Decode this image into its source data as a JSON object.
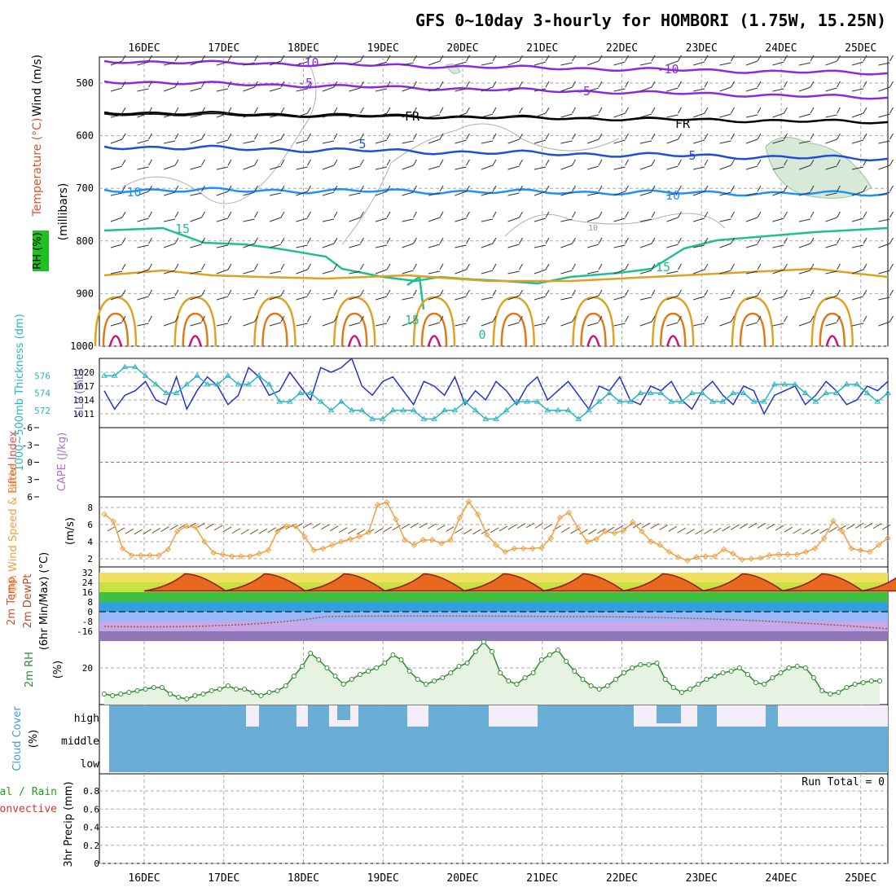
{
  "title": "GFS 0~10day 3-hourly for HOMBORI (1.75W, 15.25N)",
  "dates": [
    "16DEC",
    "17DEC",
    "18DEC",
    "19DEC",
    "20DEC",
    "21DEC",
    "22DEC",
    "23DEC",
    "24DEC",
    "25DEC"
  ],
  "panels": {
    "upper": {
      "ylabel_wind": "Wind (m/s)",
      "ylabel_temp": "Temperature (°C)",
      "ylabel_rh": "RH (%)",
      "ylabel_mb": "(millibars)",
      "yticks": [
        "500",
        "600",
        "700",
        "800",
        "900",
        "1000"
      ],
      "isotherm_labels": [
        "-10",
        "-10",
        "-5",
        "-5",
        "FR",
        "FR",
        "5",
        "5",
        "-10",
        "10",
        "15",
        "15",
        "15",
        "0",
        "10"
      ]
    },
    "slp": {
      "ylabel_thick": "1000~500mb Thickness (dm)",
      "ylabel_slp": "SLP (mb)",
      "left_ticks": [
        "576",
        "574",
        "572"
      ],
      "right_ticks": [
        "1020",
        "1017",
        "1014",
        "1011"
      ]
    },
    "cape": {
      "ylabel_li": "Lifted Index",
      "ylabel_cape": "CAPE (J/kg)",
      "ticks": [
        "-6",
        "-3",
        "0",
        "3",
        "6"
      ]
    },
    "wind10": {
      "ylabel": "10m Wind Speed & Barbs",
      "ylabel_unit": "(m/s)",
      "ticks": [
        "8",
        "6",
        "4",
        "2"
      ]
    },
    "temp2m": {
      "ylabel": "2m Temp 2m DewPt (6hr Min/Max) (°C)",
      "ticks": [
        "32",
        "24",
        "16",
        "8",
        "0",
        "-8",
        "-16"
      ]
    },
    "rh2m": {
      "ylabel": "2m RH",
      "ylabel_unit": "(%)",
      "ticks": [
        "20"
      ]
    },
    "cloud": {
      "ylabel": "Cloud Cover (%)",
      "levels": [
        "high",
        "middle",
        "low"
      ]
    },
    "precip": {
      "ylabel": "3hr Precip (mm)",
      "legend_total": "Total / Rain",
      "legend_conv": "Convective",
      "run_total": "Run Total = 0",
      "ticks": [
        "0.8",
        "0.6",
        "0.4",
        "0.2",
        "0"
      ]
    }
  },
  "colors": {
    "isotherm_neg10": "#8a2be2",
    "isotherm_fr": "#000000",
    "isotherm_5": "#1f4fd6",
    "isotherm_10": "#1e90ff",
    "isotherm_15": "#1fbf8f",
    "isotherm_warm": "#e0a020",
    "thickness": "#2ab5c0",
    "slp": "#2233cc",
    "wind10": "#f0a040",
    "rh2m": "#2e8b2e",
    "cloud": "#6aaed6"
  },
  "chart_data": [
    {
      "type": "line",
      "title": "1000~500mb Thickness (dm) / SLP (mb)",
      "series": [
        {
          "name": "SLP (mb)",
          "values": [
            1016,
            1012,
            1015,
            1016,
            1018,
            1014,
            1013,
            1019,
            1012,
            1016,
            1019,
            1017,
            1013,
            1015,
            1021,
            1019,
            1015,
            1016,
            1020,
            1017,
            1014,
            1021,
            1020,
            1021,
            1023,
            1017,
            1015,
            1018,
            1019,
            1016,
            1013,
            1018,
            1017,
            1015,
            1019,
            1013,
            1016,
            1014,
            1018,
            1016,
            1013,
            1017,
            1019,
            1014,
            1016,
            1018,
            1015,
            1012,
            1017,
            1016,
            1019,
            1014,
            1013,
            1017,
            1016,
            1018,
            1014,
            1012,
            1016,
            1018,
            1015,
            1013,
            1017,
            1016,
            1011,
            1015,
            1016,
            1017,
            1013,
            1015,
            1018,
            1016,
            1013,
            1014,
            1017,
            1016,
            1018
          ]
        },
        {
          "name": "Thickness (dm)",
          "values": [
            576,
            576,
            577,
            577,
            576,
            575,
            574,
            574,
            575,
            576,
            575,
            575,
            576,
            575,
            575,
            576,
            575,
            573,
            573,
            574,
            574,
            573,
            572,
            573,
            572,
            572,
            571,
            571,
            572,
            572,
            572,
            571,
            571,
            572,
            572,
            573,
            572,
            571,
            571,
            572,
            573,
            573,
            573,
            572,
            572,
            572,
            571,
            572,
            573,
            574,
            573,
            573,
            574,
            574,
            574,
            573,
            573,
            574,
            574,
            573,
            573,
            574,
            574,
            573,
            573,
            575,
            575,
            575,
            574,
            573,
            574,
            574,
            575,
            575,
            574,
            573,
            574
          ]
        }
      ]
    },
    {
      "type": "line",
      "title": "10m Wind Speed (m/s)",
      "series": [
        {
          "name": "10m Wind Speed",
          "values": [
            7.2,
            6.4,
            3.2,
            2.4,
            2.4,
            2.4,
            2.4,
            3.1,
            5.2,
            5.8,
            5.7,
            4.0,
            2.7,
            2.5,
            2.3,
            2.3,
            2.3,
            2.6,
            3.0,
            5.2,
            5.8,
            5.8,
            4.6,
            3.0,
            3.2,
            3.6,
            4.0,
            4.3,
            4.6,
            5.1,
            8.3,
            8.6,
            6.6,
            4.2,
            3.6,
            4.2,
            4.2,
            3.8,
            4.2,
            6.8,
            8.7,
            7.2,
            4.8,
            3.6,
            2.8,
            3.2,
            3.2,
            3.2,
            3.3,
            4.4,
            6.8,
            7.4,
            5.6,
            4.0,
            4.3,
            5.2,
            5.0,
            5.3,
            6.3,
            5.2,
            4.0,
            3.6,
            2.8,
            2.2,
            1.8,
            2.2,
            2.3,
            2.3,
            3.1,
            2.6,
            1.9,
            2.0,
            2.1,
            2.4,
            2.5,
            2.5,
            2.5,
            2.8,
            3.2,
            4.4,
            6.4,
            5.2,
            3.2,
            3.0,
            2.8,
            3.6,
            4.4
          ]
        }
      ]
    },
    {
      "type": "area",
      "title": "2m RH (%)",
      "series": [
        {
          "name": "2m RH",
          "values": [
            4,
            3,
            4,
            5,
            6,
            7,
            8,
            8,
            4,
            2,
            1,
            3,
            4,
            6,
            7,
            9,
            7,
            7,
            5,
            3,
            5,
            6,
            9,
            15,
            21,
            29,
            25,
            20,
            15,
            10,
            13,
            16,
            18,
            20,
            23,
            28,
            25,
            18,
            13,
            10,
            12,
            14,
            17,
            21,
            23,
            30,
            36,
            30,
            17,
            12,
            10,
            14,
            17,
            25,
            28,
            31,
            24,
            18,
            13,
            9,
            7,
            9,
            13,
            17,
            20,
            22,
            22,
            23,
            13,
            8,
            5,
            7,
            10,
            13,
            15,
            17,
            18,
            20,
            16,
            11,
            10,
            14,
            17,
            20,
            21,
            20,
            14,
            6,
            4,
            5,
            8,
            10,
            11,
            12,
            12
          ]
        }
      ]
    }
  ]
}
